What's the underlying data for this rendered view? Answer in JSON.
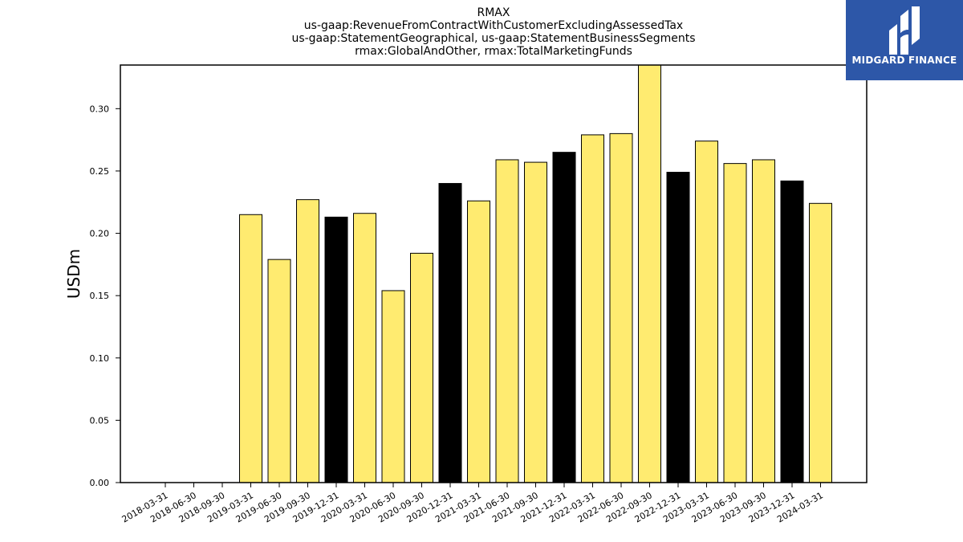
{
  "logo": {
    "text": "MIDGARD FINANCE",
    "background": "#2d57a8",
    "icon": "midgard-logo-icon"
  },
  "colors": {
    "bar_regular": "#ffeb70",
    "bar_highlight": "#000000",
    "bar_edge": "#000000",
    "axis": "#000000"
  },
  "chart_data": {
    "type": "bar",
    "title_lines": [
      "RMAX",
      "us-gaap:RevenueFromContractWithCustomerExcludingAssessedTax",
      "us-gaap:StatementGeographical, us-gaap:StatementBusinessSegments",
      "rmax:GlobalAndOther, rmax:TotalMarketingFunds"
    ],
    "xlabel": "",
    "ylabel": "USDm",
    "ylim": [
      0,
      0.335
    ],
    "yticks": [
      "0.00",
      "0.05",
      "0.10",
      "0.15",
      "0.20",
      "0.25",
      "0.30"
    ],
    "categories": [
      "2018-03-31",
      "2018-06-30",
      "2018-09-30",
      "2019-03-31",
      "2019-06-30",
      "2019-09-30",
      "2019-12-31",
      "2020-03-31",
      "2020-06-30",
      "2020-09-30",
      "2020-12-31",
      "2021-03-31",
      "2021-06-30",
      "2021-09-30",
      "2021-12-31",
      "2022-03-31",
      "2022-06-30",
      "2022-09-30",
      "2022-12-31",
      "2023-03-31",
      "2023-06-30",
      "2023-09-30",
      "2023-12-31",
      "2024-03-31"
    ],
    "values": [
      null,
      null,
      null,
      0.215,
      0.179,
      0.227,
      0.213,
      0.216,
      0.154,
      0.184,
      0.24,
      0.226,
      0.259,
      0.257,
      0.265,
      0.279,
      0.28,
      0.336,
      0.249,
      0.274,
      0.256,
      0.259,
      0.242,
      0.224
    ],
    "highlight": [
      false,
      false,
      false,
      false,
      false,
      false,
      true,
      false,
      false,
      false,
      true,
      false,
      false,
      false,
      true,
      false,
      false,
      false,
      true,
      false,
      false,
      false,
      true,
      false
    ],
    "grid": false,
    "legend": "none"
  }
}
